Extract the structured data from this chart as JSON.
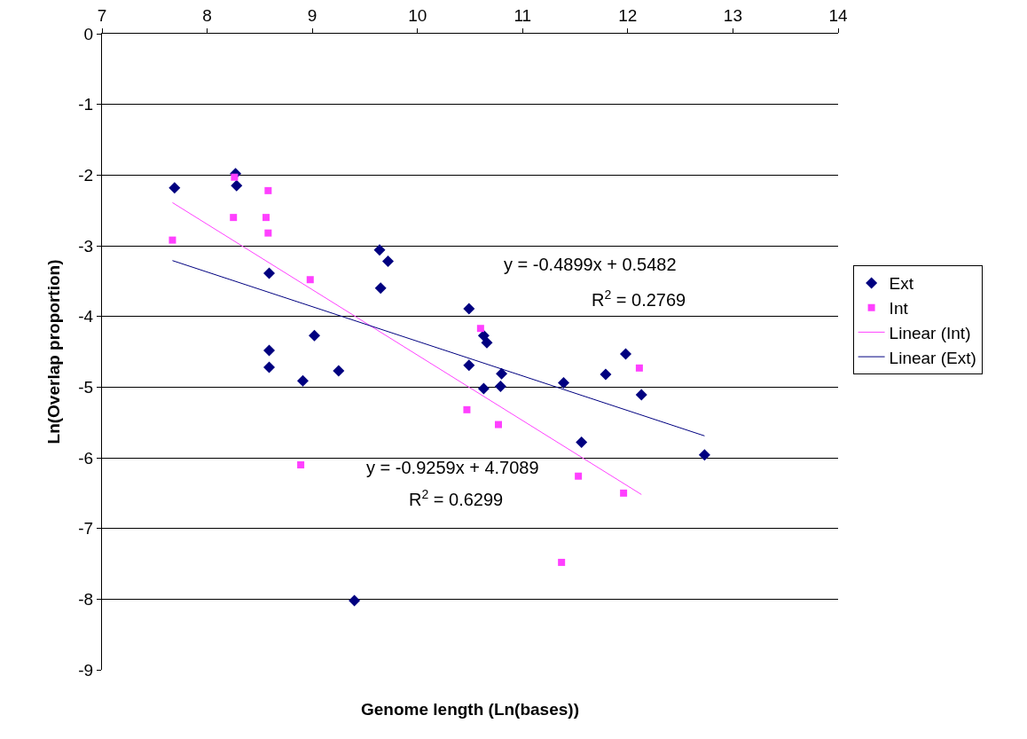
{
  "chart_data": {
    "type": "scatter",
    "xlabel": "Genome length (Ln(bases))",
    "ylabel": "Ln(Overlap proportion)",
    "xlim": [
      7,
      14
    ],
    "xticks": [
      7,
      8,
      9,
      10,
      11,
      12,
      13,
      14
    ],
    "ylim": [
      -9,
      0
    ],
    "yticks": [
      -9,
      -8,
      -7,
      -6,
      -5,
      -4,
      -3,
      -2,
      -1,
      0
    ],
    "grid": "y",
    "legend": "right",
    "series": [
      {
        "name": "Ext",
        "color": "#000080",
        "marker": "diamond",
        "x": [
          7.69,
          8.27,
          8.28,
          8.59,
          8.59,
          8.59,
          9.02,
          8.91,
          9.25,
          9.4,
          9.64,
          9.72,
          9.65,
          10.49,
          10.49,
          10.63,
          10.66,
          10.63,
          10.8,
          10.79,
          11.39,
          11.56,
          11.79,
          11.98,
          12.13,
          12.73
        ],
        "values": [
          -2.18,
          -1.98,
          -2.15,
          -3.39,
          -4.48,
          -4.72,
          -4.27,
          -4.91,
          -4.77,
          -8.02,
          -3.06,
          -3.22,
          -3.6,
          -3.89,
          -4.69,
          -4.27,
          -4.37,
          -5.02,
          -4.81,
          -4.99,
          -4.94,
          -5.78,
          -4.82,
          -4.53,
          -5.11,
          -5.96
        ]
      },
      {
        "name": "Int",
        "color": "#ff40ff",
        "marker": "square",
        "x": [
          7.67,
          8.26,
          8.25,
          8.58,
          8.56,
          8.58,
          8.98,
          8.89,
          10.6,
          10.47,
          10.77,
          11.37,
          11.53,
          12.11,
          11.96
        ],
        "values": [
          -2.92,
          -2.03,
          -2.6,
          -2.22,
          -2.6,
          -2.82,
          -3.48,
          -6.1,
          -4.17,
          -5.32,
          -5.53,
          -7.48,
          -6.26,
          -4.73,
          -6.5
        ]
      },
      {
        "name": "Linear (Int)",
        "type": "line",
        "color": "#ff40ff",
        "marker": "none",
        "x": [
          7.67,
          12.13
        ],
        "values": [
          -2.39,
          -6.52
        ]
      },
      {
        "name": "Linear (Ext)",
        "type": "line",
        "color": "#000080",
        "marker": "none",
        "x": [
          7.67,
          12.73
        ],
        "values": [
          -3.21,
          -5.69
        ]
      }
    ],
    "annotations": [
      "y = -0.4899x + 0.5482",
      "R$^{2}$ = 0.2769",
      "y = -0.9259x + 4.7089",
      "R$^{2}$ = 0.6299"
    ]
  }
}
